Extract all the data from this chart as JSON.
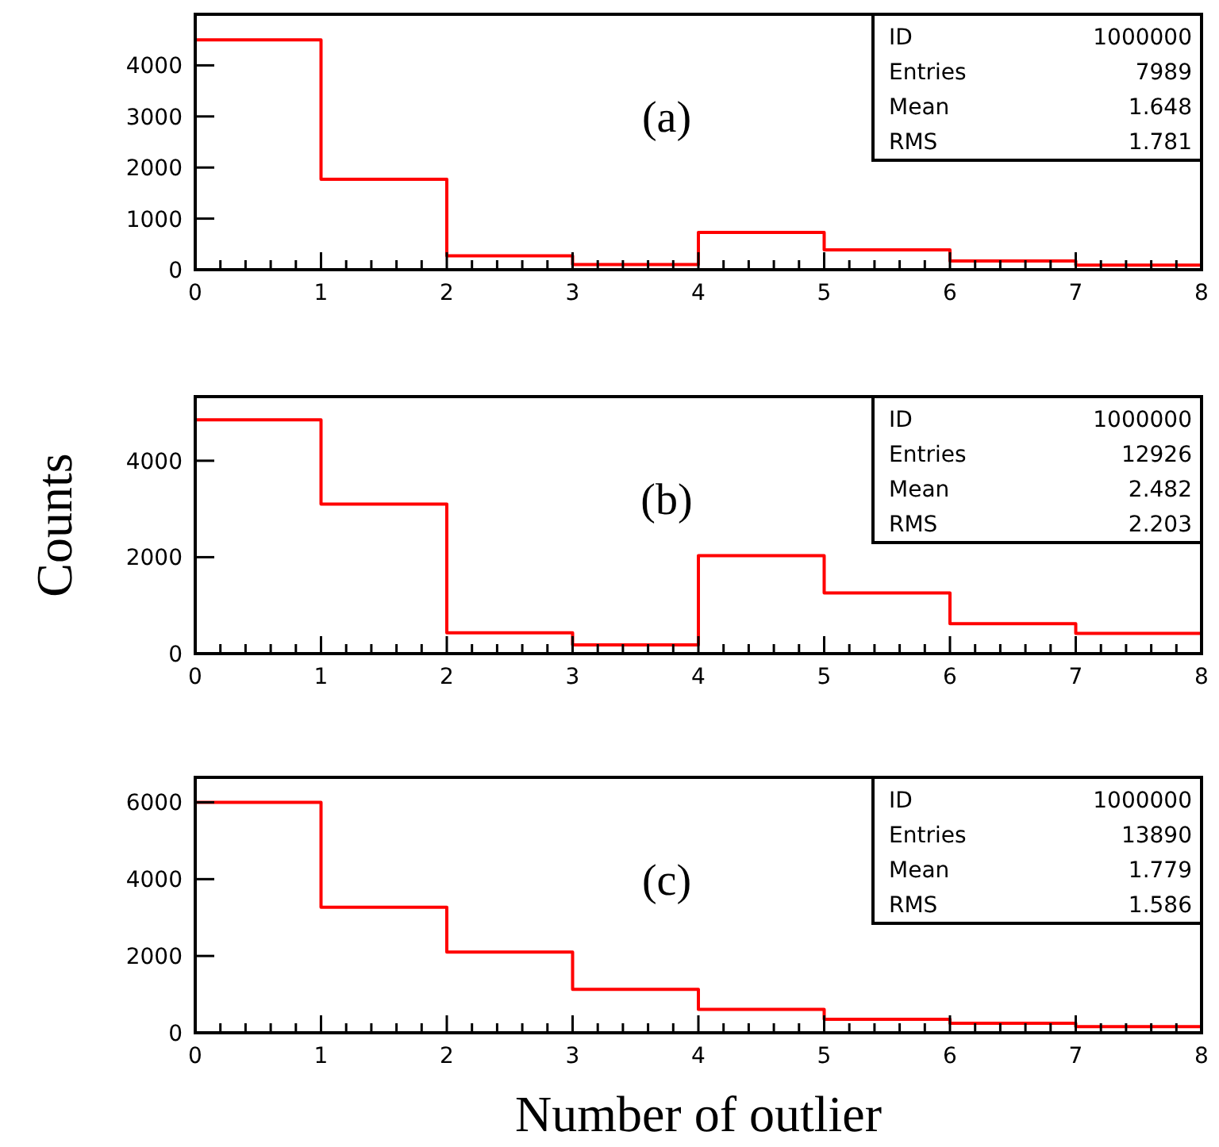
{
  "chart_data": [
    {
      "type": "histogram",
      "bins": [
        0,
        1,
        2,
        3,
        4,
        5,
        6,
        7,
        8
      ],
      "values": [
        4500,
        1770,
        270,
        100,
        730,
        390,
        170,
        90
      ],
      "color": "#ff0000",
      "xlim": [
        0,
        8
      ],
      "ylim": [
        0,
        5000
      ],
      "xticks": [
        0,
        {
          "value": 0.2,
          "label": null
        },
        {
          "value": 0.4,
          "label": null
        },
        {
          "value": 0.6,
          "label": null
        },
        {
          "value": 0.8,
          "label": null
        },
        1,
        {
          "value": 1.2,
          "label": null
        },
        {
          "value": 1.4,
          "label": null
        },
        {
          "value": 1.6,
          "label": null
        },
        {
          "value": 1.8,
          "label": null
        },
        2,
        {
          "value": 2.2,
          "label": null
        },
        {
          "value": 2.4,
          "label": null
        },
        {
          "value": 2.6,
          "label": null
        },
        {
          "value": 2.8,
          "label": null
        },
        3,
        {
          "value": 3.2,
          "label": null
        },
        {
          "value": 3.4,
          "label": null
        },
        {
          "value": 3.6,
          "label": null
        },
        {
          "value": 3.8,
          "label": null
        },
        4,
        {
          "value": 4.2,
          "label": null
        },
        {
          "value": 4.4,
          "label": null
        },
        {
          "value": 4.6,
          "label": null
        },
        {
          "value": 4.8,
          "label": null
        },
        5,
        {
          "value": 5.2,
          "label": null
        },
        {
          "value": 5.4,
          "label": null
        },
        {
          "value": 5.6,
          "label": null
        },
        {
          "value": 5.8,
          "label": null
        },
        6,
        {
          "value": 6.2,
          "label": null
        },
        {
          "value": 6.4,
          "label": null
        },
        {
          "value": 6.6,
          "label": null
        },
        {
          "value": 6.8,
          "label": null
        },
        7,
        {
          "value": 7.2,
          "label": null
        },
        {
          "value": 7.4,
          "label": null
        },
        {
          "value": 7.6,
          "label": null
        },
        {
          "value": 7.8,
          "label": null
        },
        8
      ],
      "yticks": [
        0,
        1000,
        2000,
        3000,
        4000
      ],
      "annotations": [
        "(a)",
        "ID",
        "1000000",
        "Entries",
        "7989",
        "Mean",
        "1.648",
        "RMS",
        "1.781"
      ]
    },
    {
      "type": "histogram",
      "bins": [
        0,
        1,
        2,
        3,
        4,
        5,
        6,
        7,
        8
      ],
      "values": [
        4850,
        3100,
        430,
        180,
        2030,
        1260,
        620,
        420
      ],
      "color": "#ff0000",
      "xlim": [
        0,
        8
      ],
      "ylim": [
        0,
        5330
      ],
      "xticks": [
        0,
        {
          "value": 0.2,
          "label": null
        },
        {
          "value": 0.4,
          "label": null
        },
        {
          "value": 0.6,
          "label": null
        },
        {
          "value": 0.8,
          "label": null
        },
        1,
        {
          "value": 1.2,
          "label": null
        },
        {
          "value": 1.4,
          "label": null
        },
        {
          "value": 1.6,
          "label": null
        },
        {
          "value": 1.8,
          "label": null
        },
        2,
        {
          "value": 2.2,
          "label": null
        },
        {
          "value": 2.4,
          "label": null
        },
        {
          "value": 2.6,
          "label": null
        },
        {
          "value": 2.8,
          "label": null
        },
        3,
        {
          "value": 3.2,
          "label": null
        },
        {
          "value": 3.4,
          "label": null
        },
        {
          "value": 3.6,
          "label": null
        },
        {
          "value": 3.8,
          "label": null
        },
        4,
        {
          "value": 4.2,
          "label": null
        },
        {
          "value": 4.4,
          "label": null
        },
        {
          "value": 4.6,
          "label": null
        },
        {
          "value": 4.8,
          "label": null
        },
        5,
        {
          "value": 5.2,
          "label": null
        },
        {
          "value": 5.4,
          "label": null
        },
        {
          "value": 5.6,
          "label": null
        },
        {
          "value": 5.8,
          "label": null
        },
        6,
        {
          "value": 6.2,
          "label": null
        },
        {
          "value": 6.4,
          "label": null
        },
        {
          "value": 6.6,
          "label": null
        },
        {
          "value": 6.8,
          "label": null
        },
        7,
        {
          "value": 7.2,
          "label": null
        },
        {
          "value": 7.4,
          "label": null
        },
        {
          "value": 7.6,
          "label": null
        },
        {
          "value": 7.8,
          "label": null
        },
        8
      ],
      "yticks": [
        0,
        2000,
        4000
      ],
      "ylabel": "Counts",
      "annotations": [
        "(b)",
        "ID",
        "1000000",
        "Entries",
        "12926",
        "Mean",
        "2.482",
        "RMS",
        "2.203"
      ]
    },
    {
      "type": "histogram",
      "bins": [
        0,
        1,
        2,
        3,
        4,
        5,
        6,
        7,
        8
      ],
      "values": [
        6000,
        3270,
        2100,
        1130,
        610,
        350,
        250,
        160
      ],
      "color": "#ff0000",
      "xlim": [
        0,
        8
      ],
      "ylim": [
        0,
        6650
      ],
      "xticks": [
        0,
        {
          "value": 0.2,
          "label": null
        },
        {
          "value": 0.4,
          "label": null
        },
        {
          "value": 0.6,
          "label": null
        },
        {
          "value": 0.8,
          "label": null
        },
        1,
        {
          "value": 1.2,
          "label": null
        },
        {
          "value": 1.4,
          "label": null
        },
        {
          "value": 1.6,
          "label": null
        },
        {
          "value": 1.8,
          "label": null
        },
        2,
        {
          "value": 2.2,
          "label": null
        },
        {
          "value": 2.4,
          "label": null
        },
        {
          "value": 2.6,
          "label": null
        },
        {
          "value": 2.8,
          "label": null
        },
        3,
        {
          "value": 3.2,
          "label": null
        },
        {
          "value": 3.4,
          "label": null
        },
        {
          "value": 3.6,
          "label": null
        },
        {
          "value": 3.8,
          "label": null
        },
        4,
        {
          "value": 4.2,
          "label": null
        },
        {
          "value": 4.4,
          "label": null
        },
        {
          "value": 4.6,
          "label": null
        },
        {
          "value": 4.8,
          "label": null
        },
        5,
        {
          "value": 5.2,
          "label": null
        },
        {
          "value": 5.4,
          "label": null
        },
        {
          "value": 5.6,
          "label": null
        },
        {
          "value": 5.8,
          "label": null
        },
        6,
        {
          "value": 6.2,
          "label": null
        },
        {
          "value": 6.4,
          "label": null
        },
        {
          "value": 6.6,
          "label": null
        },
        {
          "value": 6.8,
          "label": null
        },
        7,
        {
          "value": 7.2,
          "label": null
        },
        {
          "value": 7.4,
          "label": null
        },
        {
          "value": 7.6,
          "label": null
        },
        {
          "value": 7.8,
          "label": null
        },
        8
      ],
      "yticks": [
        0,
        2000,
        4000,
        6000
      ],
      "xlabel": "Number of outlier",
      "annotations": [
        "(c)",
        "ID",
        "1000000",
        "Entries",
        "13890",
        "Mean",
        "1.779",
        "RMS",
        "1.586"
      ]
    }
  ]
}
